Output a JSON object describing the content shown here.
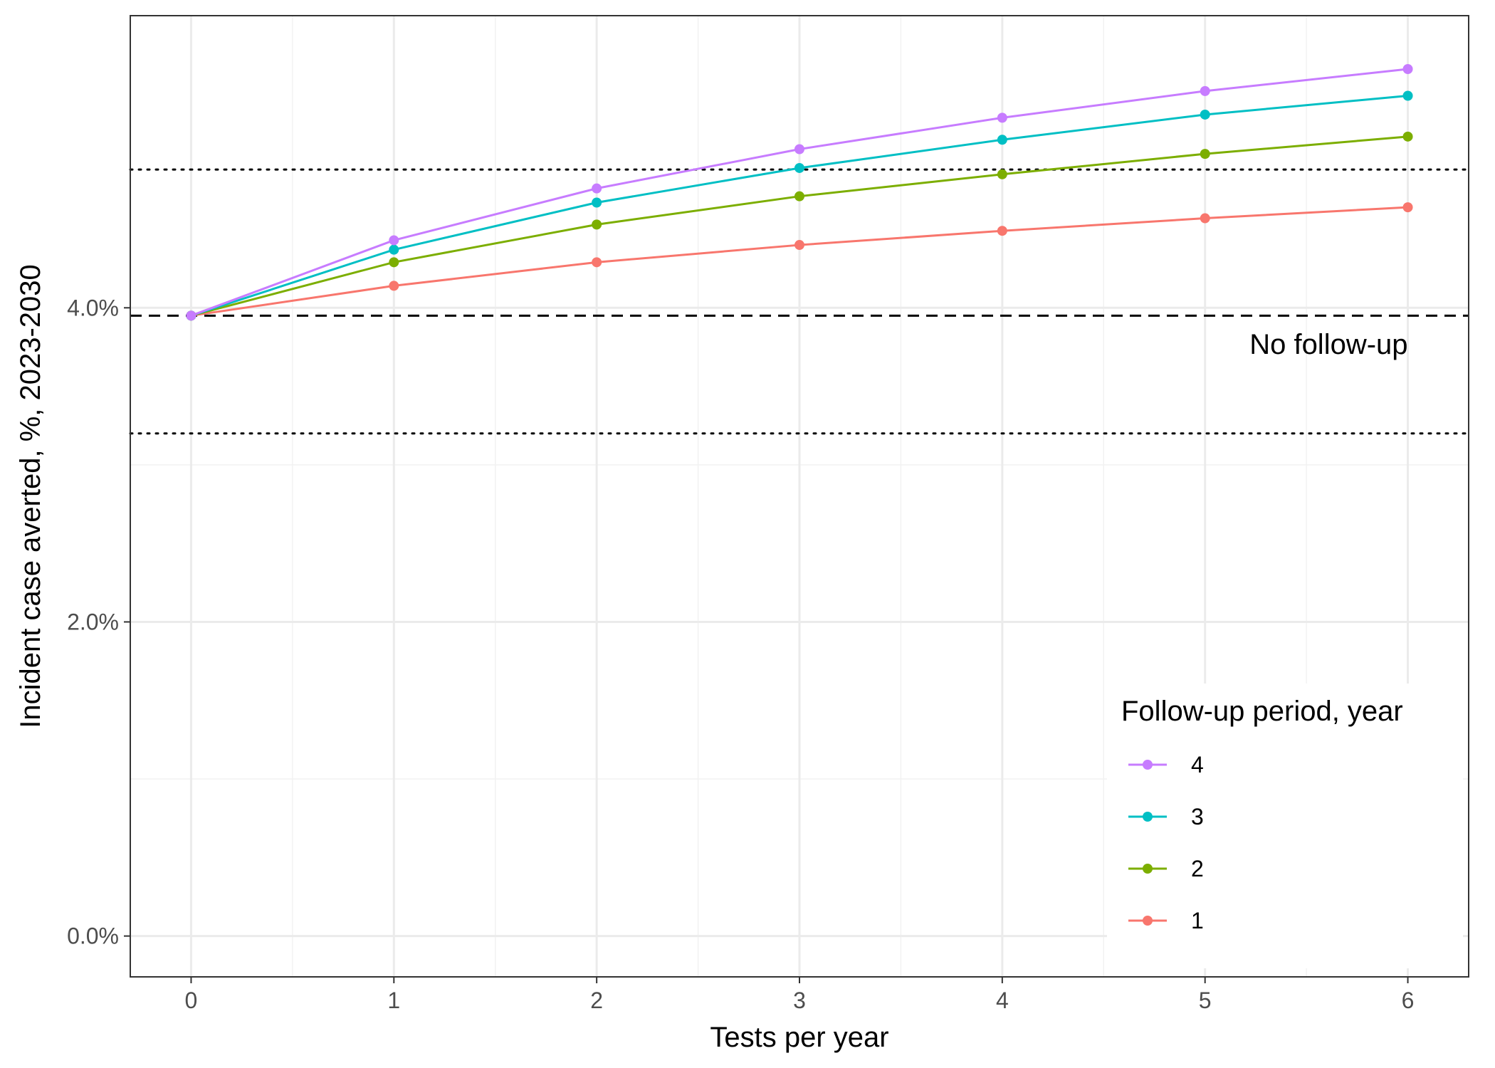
{
  "chart_data": {
    "type": "line",
    "xlabel": "Tests per year",
    "ylabel": "Incident case averted, %, 2023-2030",
    "x": [
      0,
      1,
      2,
      3,
      4,
      5,
      6
    ],
    "x_ticks": [
      "0",
      "1",
      "2",
      "3",
      "4",
      "5",
      "6"
    ],
    "xlim": [
      -0.3,
      6.3
    ],
    "y_ticks": [
      {
        "value": 0,
        "label": "0.0%"
      },
      {
        "value": 2,
        "label": "2.0%"
      },
      {
        "value": 4,
        "label": "4.0%"
      }
    ],
    "ylim": [
      -0.26,
      5.86
    ],
    "grid": true,
    "series": [
      {
        "name": "4",
        "color": "#C77CFF",
        "values": [
          3.95,
          4.43,
          4.76,
          5.01,
          5.21,
          5.38,
          5.52
        ]
      },
      {
        "name": "3",
        "color": "#00BFC4",
        "values": [
          3.95,
          4.37,
          4.67,
          4.89,
          5.07,
          5.23,
          5.35
        ]
      },
      {
        "name": "2",
        "color": "#7CAE00",
        "values": [
          3.95,
          4.29,
          4.53,
          4.71,
          4.85,
          4.98,
          5.09
        ]
      },
      {
        "name": "1",
        "color": "#F8766D",
        "values": [
          3.95,
          4.14,
          4.29,
          4.4,
          4.49,
          4.57,
          4.64
        ]
      }
    ],
    "reference_lines": [
      {
        "y": 3.95,
        "style": "dashed"
      },
      {
        "y": 4.88,
        "style": "dotted"
      },
      {
        "y": 3.2,
        "style": "dotted"
      }
    ],
    "annotation": {
      "text": "No follow-up",
      "x": 6,
      "y": 3.77
    },
    "legend": {
      "title": "Follow-up period, year",
      "position": "bottom-right"
    }
  }
}
